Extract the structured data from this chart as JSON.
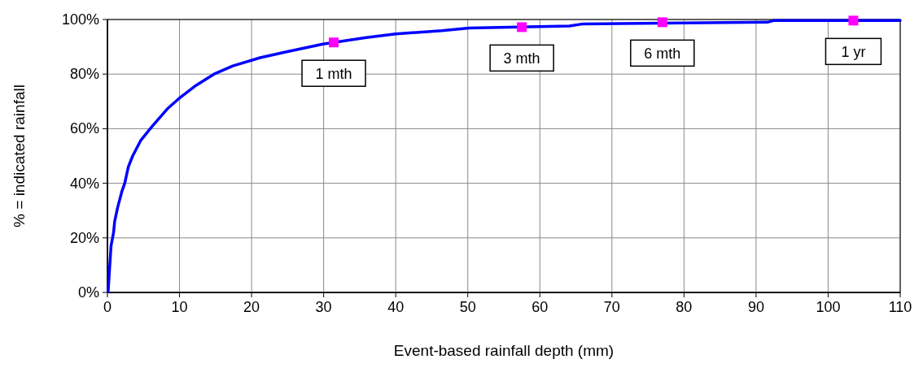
{
  "chart_data": {
    "type": "line",
    "xlabel": "Event-based rainfall depth (mm)",
    "ylabel": "% = indicated rainfall",
    "xlim": [
      0,
      110
    ],
    "xticks": [
      0,
      10,
      20,
      30,
      40,
      50,
      60,
      70,
      80,
      90,
      100,
      110
    ],
    "ylim": [
      0,
      100
    ],
    "yticks": [
      {
        "value": 0,
        "label": "0%"
      },
      {
        "value": 20,
        "label": "20%"
      },
      {
        "value": 40,
        "label": "40%"
      },
      {
        "value": 60,
        "label": "60%"
      },
      {
        "value": 80,
        "label": "80%"
      },
      {
        "value": 100,
        "label": "100%"
      }
    ],
    "grid": true,
    "series": [
      {
        "color": "#0000ff",
        "marker": "none",
        "line_style": "solid",
        "x": [
          0.1,
          0.3,
          0.5,
          0.85,
          1.0,
          1.4,
          2.0,
          2.4,
          2.9,
          3.5,
          4.6,
          6.1,
          8.4,
          9.9,
          12.1,
          14.8,
          17.4,
          21.2,
          24.6,
          29.9,
          35.9,
          40.0,
          46.4,
          50.2,
          64.1,
          66,
          91.6,
          92.4,
          110
        ],
        "values": [
          0.4,
          8.8,
          17,
          22,
          26,
          31,
          37,
          40,
          46,
          50,
          55.6,
          60.5,
          67.5,
          71,
          75.5,
          80,
          83,
          86,
          88,
          91,
          93.4,
          94.7,
          95.9,
          96.9,
          97.6,
          98.4,
          99,
          99.6,
          99.6
        ]
      },
      {
        "type": "scatter",
        "color": "#ff00ff",
        "marker": "square",
        "x": [
          31.4,
          57.5,
          77,
          103.5
        ],
        "values": [
          91.6,
          97.2,
          99,
          99.6
        ]
      }
    ],
    "annotations": [
      {
        "text": "1 mth",
        "x": 31.4,
        "y": 91.6
      },
      {
        "text": "3 mth",
        "x": 57.5,
        "y": 97.2
      },
      {
        "text": "6 mth",
        "x": 77,
        "y": 99
      },
      {
        "text": "1 yr",
        "x": 103.5,
        "y": 99.6
      }
    ]
  }
}
